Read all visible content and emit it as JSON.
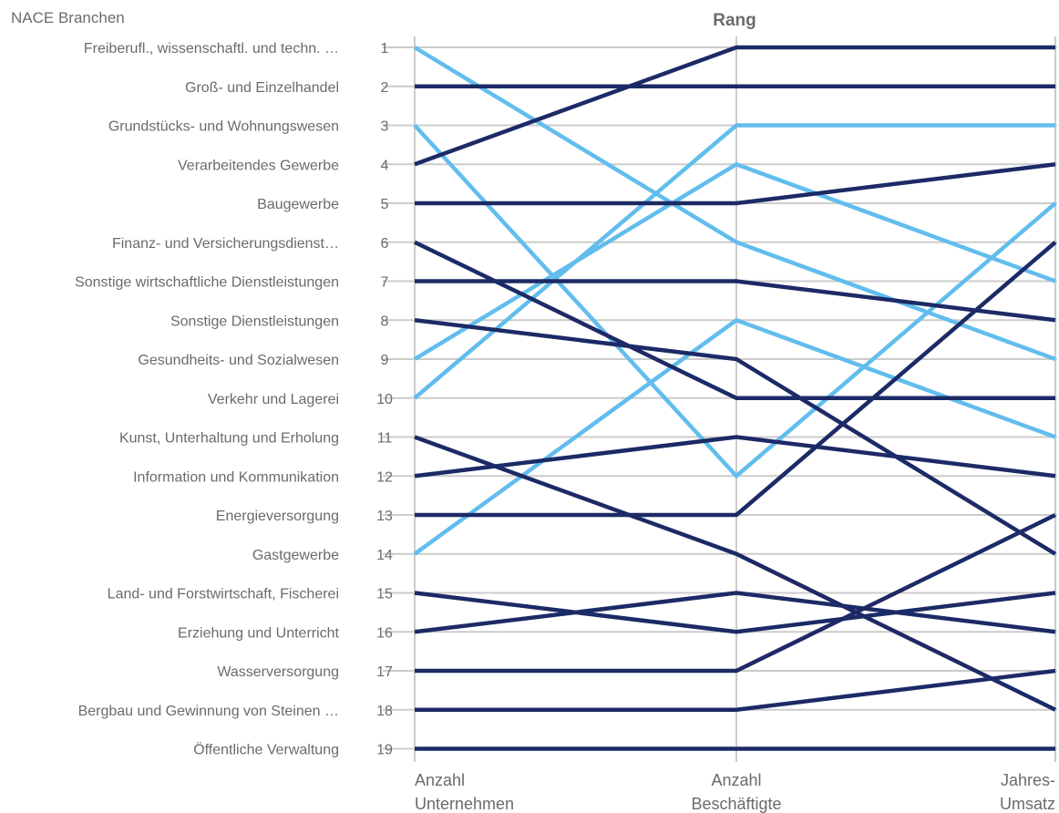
{
  "chart_data": {
    "type": "line",
    "title": "Rang",
    "row_header": "NACE Branchen",
    "x": [
      [
        "Anzahl",
        "Unternehmen"
      ],
      [
        "Anzahl",
        "Beschäftigte"
      ],
      [
        "Jahres-",
        "Umsatz"
      ]
    ],
    "rank_ticks": [
      "1",
      "2",
      "3",
      "4",
      "5",
      "6",
      "7",
      "8",
      "9",
      "10",
      "11",
      "12",
      "13",
      "14",
      "15",
      "16",
      "17",
      "18",
      "19"
    ],
    "categories": [
      "Freiberufl., wissenschaftl. und techn. …",
      "Groß- und Einzelhandel",
      "Grundstücks- und Wohnungswesen",
      "Verarbeitendes Gewerbe",
      "Baugewerbe",
      "Finanz- und Versicherungsdienst…",
      "Sonstige wirtschaftliche Dienstleistungen",
      "Sonstige Dienstleistungen",
      "Gesundheits- und Sozialwesen",
      "Verkehr und Lagerei",
      "Kunst, Unterhaltung  und Erholung",
      "Information und Kommunikation",
      "Energieversorgung",
      "Gastgewerbe",
      "Land- und Forstwirtschaft, Fischerei",
      "Erziehung und Unterricht",
      "Wasserversorgung",
      "Bergbau und Gewinnung  von Steinen …",
      "Öffentliche Verwaltung"
    ],
    "ylim": [
      1,
      19
    ],
    "y_reversed": true,
    "grid": true,
    "colors": {
      "dark": "#1c2a66",
      "light": "#62bdee",
      "grid": "#cccccc"
    },
    "series": [
      {
        "values": [
          4,
          1,
          1
        ],
        "color": "dark"
      },
      {
        "values": [
          2,
          2,
          2
        ],
        "color": "dark"
      },
      {
        "values": [
          5,
          5,
          4
        ],
        "color": "dark"
      },
      {
        "values": [
          7,
          7,
          8
        ],
        "color": "dark"
      },
      {
        "values": [
          6,
          10,
          10
        ],
        "color": "dark"
      },
      {
        "values": [
          8,
          9,
          14
        ],
        "color": "dark"
      },
      {
        "values": [
          12,
          11,
          12
        ],
        "color": "dark"
      },
      {
        "values": [
          13,
          13,
          6
        ],
        "color": "dark"
      },
      {
        "values": [
          11,
          14,
          18
        ],
        "color": "dark"
      },
      {
        "values": [
          15,
          16,
          15
        ],
        "color": "dark"
      },
      {
        "values": [
          16,
          15,
          16
        ],
        "color": "dark"
      },
      {
        "values": [
          17,
          17,
          13
        ],
        "color": "dark"
      },
      {
        "values": [
          18,
          18,
          17
        ],
        "color": "dark"
      },
      {
        "values": [
          19,
          19,
          19
        ],
        "color": "dark"
      },
      {
        "values": [
          1,
          6,
          9
        ],
        "color": "light"
      },
      {
        "values": [
          3,
          12,
          5
        ],
        "color": "light"
      },
      {
        "values": [
          10,
          3,
          3
        ],
        "color": "light"
      },
      {
        "values": [
          9,
          4,
          7
        ],
        "color": "light"
      },
      {
        "values": [
          14,
          8,
          11
        ],
        "color": "light"
      }
    ]
  }
}
